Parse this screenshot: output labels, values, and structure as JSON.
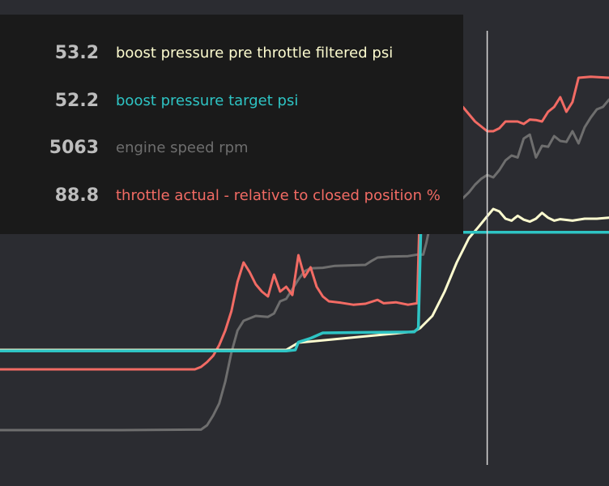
{
  "colors": {
    "background": "#2b2c31",
    "legend_background": "#1a1a1a",
    "value_text": "#bdbdbd",
    "cursor": "#d9d9d9"
  },
  "chart_data": {
    "type": "line",
    "xlabel": "",
    "ylabel": "",
    "grid": false,
    "legend_placement": "top-left",
    "x_range": [
      0,
      100
    ],
    "y_range": [
      0,
      100
    ],
    "cursor_x": 80,
    "series": [
      {
        "name": "boost pressure pre throttle filtered psi",
        "color": "#fdfccf",
        "value": "53.2",
        "points": [
          [
            0,
            28.0
          ],
          [
            32,
            28.0
          ],
          [
            40,
            28.0
          ],
          [
            47,
            28.0
          ],
          [
            49,
            29.5
          ],
          [
            55,
            30.2
          ],
          [
            65,
            31.4
          ],
          [
            68,
            31.8
          ],
          [
            69,
            32.5
          ],
          [
            71,
            35.0
          ],
          [
            73,
            40.0
          ],
          [
            75,
            46.0
          ],
          [
            77,
            51.0
          ],
          [
            78.5,
            53.2
          ],
          [
            80,
            55.5
          ],
          [
            81,
            57.0
          ],
          [
            82,
            56.5
          ],
          [
            83,
            55.0
          ],
          [
            84,
            54.6
          ],
          [
            85,
            55.6
          ],
          [
            86,
            54.8
          ],
          [
            87,
            54.4
          ],
          [
            88,
            55.0
          ],
          [
            89,
            56.2
          ],
          [
            90,
            55.2
          ],
          [
            91,
            54.6
          ],
          [
            92,
            54.9
          ],
          [
            94,
            54.6
          ],
          [
            96,
            55.0
          ],
          [
            98,
            55.0
          ],
          [
            100,
            55.2
          ]
        ]
      },
      {
        "name": "boost pressure target psi",
        "color": "#2ec4c4",
        "value": "52.2",
        "points": [
          [
            0,
            27.8
          ],
          [
            47,
            27.8
          ],
          [
            48.5,
            28.0
          ],
          [
            49,
            29.6
          ],
          [
            51,
            30.4
          ],
          [
            53,
            31.5
          ],
          [
            60,
            31.6
          ],
          [
            68,
            31.7
          ],
          [
            68.7,
            32.5
          ],
          [
            69.1,
            52.5
          ],
          [
            70,
            52.2
          ],
          [
            75,
            52.2
          ],
          [
            80,
            52.2
          ],
          [
            85,
            52.2
          ],
          [
            90,
            52.2
          ],
          [
            95,
            52.2
          ],
          [
            100,
            52.2
          ]
        ]
      },
      {
        "name": "engine speed rpm",
        "color": "#6e6e6e",
        "value": "5063",
        "points": [
          [
            0,
            11.5
          ],
          [
            20,
            11.5
          ],
          [
            32,
            11.6
          ],
          [
            33,
            11.6
          ],
          [
            34,
            12.5
          ],
          [
            35,
            14.5
          ],
          [
            36,
            17.0
          ],
          [
            37,
            21.5
          ],
          [
            38,
            27.5
          ],
          [
            39,
            32.0
          ],
          [
            40,
            34.0
          ],
          [
            42,
            35.0
          ],
          [
            44,
            34.8
          ],
          [
            45,
            35.5
          ],
          [
            46,
            38.0
          ],
          [
            47,
            38.5
          ],
          [
            48,
            40.5
          ],
          [
            49,
            42.5
          ],
          [
            50,
            44.2
          ],
          [
            51,
            44.8
          ],
          [
            53,
            44.9
          ],
          [
            55,
            45.3
          ],
          [
            60,
            45.5
          ],
          [
            61,
            46.3
          ],
          [
            62,
            47.0
          ],
          [
            64,
            47.2
          ],
          [
            67,
            47.3
          ],
          [
            68.5,
            47.6
          ],
          [
            69.5,
            47.6
          ],
          [
            70,
            50.0
          ],
          [
            70.5,
            53.0
          ],
          [
            71,
            54.6
          ],
          [
            72,
            55.8
          ],
          [
            74,
            56.8
          ],
          [
            76,
            59.2
          ],
          [
            77,
            60.4
          ],
          [
            78,
            62.0
          ],
          [
            79,
            63.2
          ],
          [
            80,
            64.0
          ],
          [
            81,
            63.5
          ],
          [
            82,
            65.0
          ],
          [
            83,
            67.0
          ],
          [
            84,
            68.0
          ],
          [
            85,
            67.6
          ],
          [
            86,
            71.5
          ],
          [
            87,
            72.3
          ],
          [
            88,
            67.6
          ],
          [
            89,
            70.0
          ],
          [
            90,
            69.8
          ],
          [
            91,
            72.0
          ],
          [
            92,
            71.0
          ],
          [
            93,
            70.8
          ],
          [
            94,
            73.0
          ],
          [
            95,
            70.5
          ],
          [
            96,
            73.8
          ],
          [
            97,
            75.8
          ],
          [
            98,
            77.5
          ],
          [
            99,
            78.0
          ],
          [
            100,
            79.5
          ]
        ]
      },
      {
        "name": "throttle actual - relative to closed position %",
        "color": "#f26b64",
        "value": "88.8",
        "points": [
          [
            0,
            24.0
          ],
          [
            20,
            24.0
          ],
          [
            32,
            24.0
          ],
          [
            33,
            24.5
          ],
          [
            34,
            25.5
          ],
          [
            35,
            26.8
          ],
          [
            36,
            29.0
          ],
          [
            37,
            32.0
          ],
          [
            38,
            36.0
          ],
          [
            39,
            42.0
          ],
          [
            40,
            46.0
          ],
          [
            41,
            44.0
          ],
          [
            42,
            41.5
          ],
          [
            43,
            40.0
          ],
          [
            44,
            39.0
          ],
          [
            45,
            43.5
          ],
          [
            46,
            40.0
          ],
          [
            47,
            41.0
          ],
          [
            48,
            39.3
          ],
          [
            49,
            47.5
          ],
          [
            50,
            43.0
          ],
          [
            51,
            45.0
          ],
          [
            52,
            41.0
          ],
          [
            53,
            39.0
          ],
          [
            54,
            38.0
          ],
          [
            56,
            37.7
          ],
          [
            58,
            37.3
          ],
          [
            60,
            37.5
          ],
          [
            62,
            38.3
          ],
          [
            63,
            37.6
          ],
          [
            65,
            37.8
          ],
          [
            67,
            37.3
          ],
          [
            68.5,
            37.6
          ],
          [
            69,
            60.0
          ],
          [
            69.3,
            74.0
          ],
          [
            70,
            73.0
          ],
          [
            75,
            75.0
          ],
          [
            76,
            78.0
          ],
          [
            78,
            75.0
          ],
          [
            80,
            73.0
          ],
          [
            81,
            73.0
          ],
          [
            82,
            73.6
          ],
          [
            83,
            75.0
          ],
          [
            85,
            75.0
          ],
          [
            86,
            74.5
          ],
          [
            87,
            75.4
          ],
          [
            88,
            75.3
          ],
          [
            89,
            75.0
          ],
          [
            90,
            77.0
          ],
          [
            91,
            78.0
          ],
          [
            92,
            80.0
          ],
          [
            93,
            77.0
          ],
          [
            94,
            79.0
          ],
          [
            95,
            84.0
          ],
          [
            97,
            84.2
          ],
          [
            100,
            84.0
          ]
        ]
      }
    ]
  }
}
